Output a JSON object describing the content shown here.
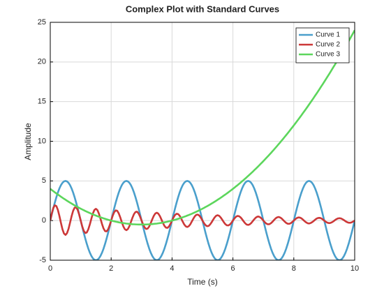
{
  "chart_data": {
    "type": "line",
    "title": "Complex Plot with Standard Curves",
    "xlabel": "Time (s)",
    "ylabel": "Amplitude",
    "xlim": [
      0,
      10
    ],
    "ylim": [
      -5,
      25
    ],
    "xticks": [
      0,
      2,
      4,
      6,
      8,
      10
    ],
    "yticks": [
      -5,
      0,
      5,
      10,
      15,
      20,
      25
    ],
    "grid": true,
    "legend": "upper right",
    "x": [
      0,
      0.05,
      0.1,
      0.15,
      0.2,
      0.25,
      0.3,
      0.35,
      0.4,
      0.45,
      0.5,
      0.55,
      0.6,
      0.65,
      0.7,
      0.75,
      0.8,
      0.85,
      0.9,
      0.95,
      1,
      1.05,
      1.1,
      1.15,
      1.2,
      1.25,
      1.3,
      1.35,
      1.4,
      1.45,
      1.5,
      1.55,
      1.6,
      1.65,
      1.7,
      1.75,
      1.8,
      1.85,
      1.9,
      1.95,
      2,
      2.05,
      2.1,
      2.15,
      2.2,
      2.25,
      2.3,
      2.35,
      2.4,
      2.45,
      2.5,
      2.55,
      2.6,
      2.65,
      2.7,
      2.75,
      2.8,
      2.85,
      2.9,
      2.95,
      3,
      3.05,
      3.1,
      3.15,
      3.2,
      3.25,
      3.3,
      3.35,
      3.4,
      3.45,
      3.5,
      3.55,
      3.6,
      3.65,
      3.7,
      3.75,
      3.8,
      3.85,
      3.9,
      3.95,
      4,
      4.05,
      4.1,
      4.15,
      4.2,
      4.25,
      4.3,
      4.35,
      4.4,
      4.45,
      4.5,
      4.55,
      4.6,
      4.65,
      4.7,
      4.75,
      4.8,
      4.85,
      4.9,
      4.95,
      5,
      5.05,
      5.1,
      5.15,
      5.2,
      5.25,
      5.3,
      5.35,
      5.4,
      5.45,
      5.5,
      5.55,
      5.6,
      5.65,
      5.7,
      5.75,
      5.8,
      5.85,
      5.9,
      5.95,
      6,
      6.05,
      6.1,
      6.15,
      6.2,
      6.25,
      6.3,
      6.35,
      6.4,
      6.45,
      6.5,
      6.55,
      6.6,
      6.65,
      6.7,
      6.75,
      6.8,
      6.85,
      6.9,
      6.95,
      7,
      7.05,
      7.1,
      7.15,
      7.2,
      7.25,
      7.3,
      7.35,
      7.4,
      7.45,
      7.5,
      7.55,
      7.6,
      7.65,
      7.7,
      7.75,
      7.8,
      7.85,
      7.9,
      7.95,
      8,
      8.05,
      8.1,
      8.15,
      8.2,
      8.25,
      8.3,
      8.35,
      8.4,
      8.45,
      8.5,
      8.55,
      8.6,
      8.65,
      8.7,
      8.75,
      8.8,
      8.85,
      8.9,
      8.95,
      9,
      9.05,
      9.1,
      9.15,
      9.2,
      9.25,
      9.3,
      9.35,
      9.4,
      9.45,
      9.5,
      9.55,
      9.6,
      9.65,
      9.7,
      9.75,
      9.8,
      9.85,
      9.9,
      9.95,
      10
    ],
    "series": [
      {
        "name": "Curve 1",
        "color": "#4a9fcc",
        "values": [
          0,
          0.78,
          1.55,
          2.27,
          2.94,
          3.54,
          4.05,
          4.46,
          4.76,
          4.94,
          5,
          4.94,
          4.76,
          4.46,
          4.05,
          3.54,
          2.94,
          2.27,
          1.55,
          0.78,
          0,
          -0.78,
          -1.55,
          -2.27,
          -2.94,
          -3.54,
          -4.05,
          -4.46,
          -4.76,
          -4.94,
          -5,
          -4.94,
          -4.76,
          -4.46,
          -4.05,
          -3.54,
          -2.94,
          -2.27,
          -1.55,
          -0.78,
          0,
          0.78,
          1.55,
          2.27,
          2.94,
          3.54,
          4.05,
          4.46,
          4.76,
          4.94,
          5,
          4.94,
          4.76,
          4.46,
          4.05,
          3.54,
          2.94,
          2.27,
          1.55,
          0.78,
          0,
          -0.78,
          -1.55,
          -2.27,
          -2.94,
          -3.54,
          -4.05,
          -4.46,
          -4.76,
          -4.94,
          -5,
          -4.94,
          -4.76,
          -4.46,
          -4.05,
          -3.54,
          -2.94,
          -2.27,
          -1.55,
          -0.78,
          0,
          0.78,
          1.55,
          2.27,
          2.94,
          3.54,
          4.05,
          4.46,
          4.76,
          4.94,
          5,
          4.94,
          4.76,
          4.46,
          4.05,
          3.54,
          2.94,
          2.27,
          1.55,
          0.78,
          0,
          -0.78,
          -1.55,
          -2.27,
          -2.94,
          -3.54,
          -4.05,
          -4.46,
          -4.76,
          -4.94,
          -5,
          -4.94,
          -4.76,
          -4.46,
          -4.05,
          -3.54,
          -2.94,
          -2.27,
          -1.55,
          -0.78,
          0,
          0.78,
          1.55,
          2.27,
          2.94,
          3.54,
          4.05,
          4.46,
          4.76,
          4.94,
          5,
          4.94,
          4.76,
          4.46,
          4.05,
          3.54,
          2.94,
          2.27,
          1.55,
          0.78,
          0,
          -0.78,
          -1.55,
          -2.27,
          -2.94,
          -3.54,
          -4.05,
          -4.46,
          -4.76,
          -4.94,
          -5,
          -4.94,
          -4.76,
          -4.46,
          -4.05,
          -3.54,
          -2.94,
          -2.27,
          -1.55,
          -0.78,
          0,
          0.78,
          1.55,
          2.27,
          2.94,
          3.54,
          4.05,
          4.46,
          4.76,
          4.94,
          5,
          4.94,
          4.76,
          4.46,
          4.05,
          3.54,
          2.94,
          2.27,
          1.55,
          0.78,
          0,
          -0.78,
          -1.55,
          -2.27,
          -2.94,
          -3.54,
          -4.05,
          -4.46,
          -4.76,
          -4.94,
          -5,
          -4.94,
          -4.76,
          -4.46,
          -4.05,
          -3.54,
          -2.94,
          -2.27,
          -1.55,
          -0.78,
          0
        ]
      },
      {
        "name": "Curve 2",
        "color": "#cc3838",
        "values": [
          0,
          0.9,
          1.59,
          1.92,
          1.83,
          1.34,
          0.58,
          -0.29,
          -1.09,
          -1.63,
          -1.81,
          -1.59,
          -1.05,
          -0.27,
          0.54,
          1.22,
          1.63,
          1.67,
          1.35,
          0.75,
          0,
          -0.74,
          -1.3,
          -1.57,
          -1.5,
          -1.1,
          -0.48,
          0.24,
          0.89,
          1.34,
          1.48,
          1.31,
          0.85,
          0.22,
          -0.44,
          -1,
          -1.33,
          -1.36,
          -1.11,
          -0.61,
          0,
          0.6,
          1.06,
          1.28,
          1.23,
          0.9,
          0.39,
          -0.2,
          -0.73,
          -1.09,
          -1.21,
          -1.07,
          -0.7,
          -0.18,
          0.36,
          0.82,
          1.08,
          1.12,
          0.91,
          0.5,
          0,
          -0.49,
          -0.87,
          -1.06,
          -1.01,
          -0.74,
          -0.32,
          0.16,
          0.59,
          0.89,
          0.99,
          0.87,
          0.57,
          0.15,
          -0.29,
          -0.67,
          -0.89,
          -0.92,
          -0.74,
          -0.41,
          0,
          0.4,
          0.71,
          0.86,
          0.82,
          0.61,
          0.26,
          -0.13,
          -0.49,
          -0.73,
          -0.81,
          -0.71,
          -0.47,
          -0.12,
          0.24,
          0.55,
          0.73,
          0.75,
          0.61,
          0.34,
          0,
          -0.33,
          -0.58,
          -0.71,
          -0.68,
          -0.49,
          -0.22,
          0.11,
          0.4,
          0.61,
          0.67,
          0.59,
          0.38,
          0.1,
          -0.2,
          -0.45,
          -0.6,
          -0.61,
          -0.5,
          -0.28,
          0,
          0.27,
          0.48,
          0.58,
          0.55,
          0.41,
          0.18,
          -0.09,
          -0.33,
          -0.5,
          -0.55,
          -0.48,
          -0.32,
          -0.08,
          0.16,
          0.37,
          0.49,
          0.5,
          0.4,
          0.23,
          0,
          -0.22,
          -0.39,
          -0.47,
          -0.45,
          -0.33,
          -0.15,
          0.07,
          0.27,
          0.4,
          0.45,
          0.39,
          0.26,
          0.07,
          -0.13,
          -0.3,
          -0.4,
          -0.41,
          -0.33,
          -0.18,
          0,
          0.18,
          0.32,
          0.39,
          0.37,
          0.28,
          0.12,
          -0.06,
          -0.22,
          -0.33,
          -0.37,
          -0.32,
          -0.21,
          -0.06,
          0.11,
          0.25,
          0.33,
          0.34,
          0.28,
          0.15,
          0,
          -0.15,
          -0.26,
          -0.32,
          -0.3,
          -0.22,
          -0.1,
          0.05,
          0.18,
          0.27,
          0.3,
          0.27,
          0.17,
          0.05,
          -0.09,
          -0.2,
          -0.27,
          -0.28,
          -0.23,
          -0.12,
          0
        ]
      },
      {
        "name": "Curve 3",
        "color": "#5cd65c",
        "values": [
          4,
          3.85,
          3.71,
          3.56,
          3.42,
          3.28,
          3.15,
          3.01,
          2.88,
          2.75,
          2.63,
          2.5,
          2.38,
          2.26,
          2.15,
          2.03,
          1.92,
          1.81,
          1.71,
          1.6,
          1.5,
          1.4,
          1.31,
          1.21,
          1.12,
          1.03,
          0.95,
          0.86,
          0.78,
          0.7,
          0.63,
          0.55,
          0.48,
          0.41,
          0.35,
          0.28,
          0.22,
          0.16,
          0.1,
          0.05,
          0,
          -0.05,
          -0.09,
          -0.14,
          -0.18,
          -0.22,
          -0.26,
          -0.29,
          -0.32,
          -0.35,
          -0.38,
          -0.4,
          -0.42,
          -0.44,
          -0.46,
          -0.47,
          -0.48,
          -0.49,
          -0.5,
          -0.5,
          -0.5,
          -0.5,
          -0.5,
          -0.49,
          -0.48,
          -0.47,
          -0.46,
          -0.44,
          -0.42,
          -0.4,
          -0.38,
          -0.35,
          -0.32,
          -0.29,
          -0.26,
          -0.22,
          -0.18,
          -0.14,
          -0.09,
          -0.05,
          0,
          0.05,
          0.1,
          0.16,
          0.22,
          0.28,
          0.35,
          0.41,
          0.48,
          0.55,
          0.63,
          0.7,
          0.78,
          0.86,
          0.95,
          1.03,
          1.12,
          1.21,
          1.31,
          1.4,
          1.5,
          1.6,
          1.71,
          1.81,
          1.92,
          2.03,
          2.15,
          2.26,
          2.38,
          2.5,
          2.63,
          2.75,
          2.88,
          3.01,
          3.15,
          3.28,
          3.42,
          3.56,
          3.71,
          3.85,
          4,
          4.15,
          4.31,
          4.46,
          4.62,
          4.78,
          4.95,
          5.11,
          5.28,
          5.45,
          5.63,
          5.8,
          5.98,
          6.16,
          6.35,
          6.53,
          6.72,
          6.91,
          7.11,
          7.3,
          7.5,
          7.7,
          7.91,
          8.11,
          8.32,
          8.53,
          8.75,
          8.96,
          9.18,
          9.4,
          9.63,
          9.85,
          10.08,
          10.31,
          10.55,
          10.78,
          11.02,
          11.26,
          11.51,
          11.75,
          12,
          12.25,
          12.51,
          12.76,
          13.02,
          13.28,
          13.55,
          13.81,
          14.08,
          14.35,
          14.63,
          14.9,
          15.18,
          15.46,
          15.75,
          16.03,
          16.32,
          16.61,
          16.91,
          17.2,
          17.5,
          17.8,
          18.11,
          18.41,
          18.72,
          19.03,
          19.35,
          19.66,
          19.98,
          20.3,
          20.63,
          20.95,
          21.28,
          21.61,
          21.95,
          22.28,
          22.62,
          22.96,
          23.31,
          23.65,
          24
        ]
      }
    ]
  }
}
